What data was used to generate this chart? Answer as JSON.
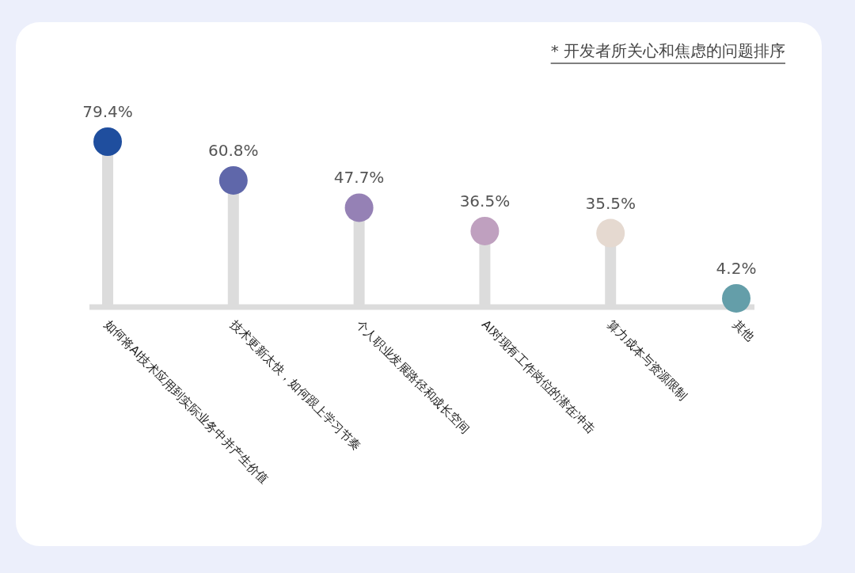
{
  "chart_data": {
    "type": "lollipop",
    "annotations": [
      "* 开发者所关心和焦虑的问题排序"
    ],
    "categories": [
      "如何将AI技术应用到实际业务中并产生价值",
      "技术更新太快，如何跟上学习节奏",
      "个人职业发展路径和成长空间",
      "AI对现有工作岗位的潜在冲击",
      "算力成本与资源限制",
      "其他"
    ],
    "values": [
      79.4,
      60.8,
      47.7,
      36.5,
      35.5,
      4.2
    ],
    "colors": [
      "#1f4e9e",
      "#5f67aa",
      "#9581b5",
      "#bfa0bf",
      "#e5d9d0",
      "#649ea9"
    ],
    "value_labels": [
      "79.4%",
      "60.8%",
      "47.7%",
      "36.5%",
      "35.5%",
      "4.2%"
    ]
  }
}
